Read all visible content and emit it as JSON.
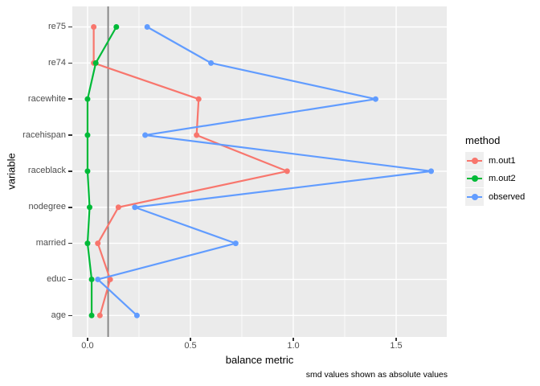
{
  "figure": {
    "background": "#FFFFFF",
    "panel_background": "#EBEBEB",
    "grid_color": "#FFFFFF",
    "axis_tick_color": "#333333",
    "tick_label_color": "#4D4D4D",
    "title_color": "#000000"
  },
  "chart_data": {
    "type": "line",
    "subtype": "dot-line balance plot (love plot), horizontal categories",
    "title": "",
    "xlabel": "balance metric",
    "ylabel": "variable",
    "caption": "smd values shown as absolute values",
    "categories": [
      "re75",
      "re74",
      "racewhite",
      "racehispan",
      "raceblack",
      "nodegree",
      "married",
      "educ",
      "age"
    ],
    "x_ticks": [
      0.0,
      0.5,
      1.0,
      1.5
    ],
    "x_tick_labels": [
      "0.0",
      "0.5",
      "1.0",
      "1.5"
    ],
    "x_minor_ticks": [
      0.25,
      0.75,
      1.25
    ],
    "x_range": [
      -0.074,
      1.746
    ],
    "grid": true,
    "threshold_line": {
      "x": 0.1,
      "color": "#7F7F7F"
    },
    "legend": {
      "title": "method",
      "position": "right",
      "key_fill": "#EFEFEF"
    },
    "series": [
      {
        "name": "m.out1",
        "color": "#F8766D",
        "values": [
          0.03,
          0.03,
          0.54,
          0.53,
          0.97,
          0.15,
          0.05,
          0.11,
          0.06
        ]
      },
      {
        "name": "m.out2",
        "color": "#00BA38",
        "values": [
          0.14,
          0.04,
          0.0,
          0.0,
          0.0,
          0.01,
          0.0,
          0.02,
          0.02
        ]
      },
      {
        "name": "observed",
        "color": "#619CFF",
        "values": [
          0.29,
          0.6,
          1.4,
          0.28,
          1.67,
          0.23,
          0.72,
          0.05,
          0.24
        ]
      }
    ]
  }
}
